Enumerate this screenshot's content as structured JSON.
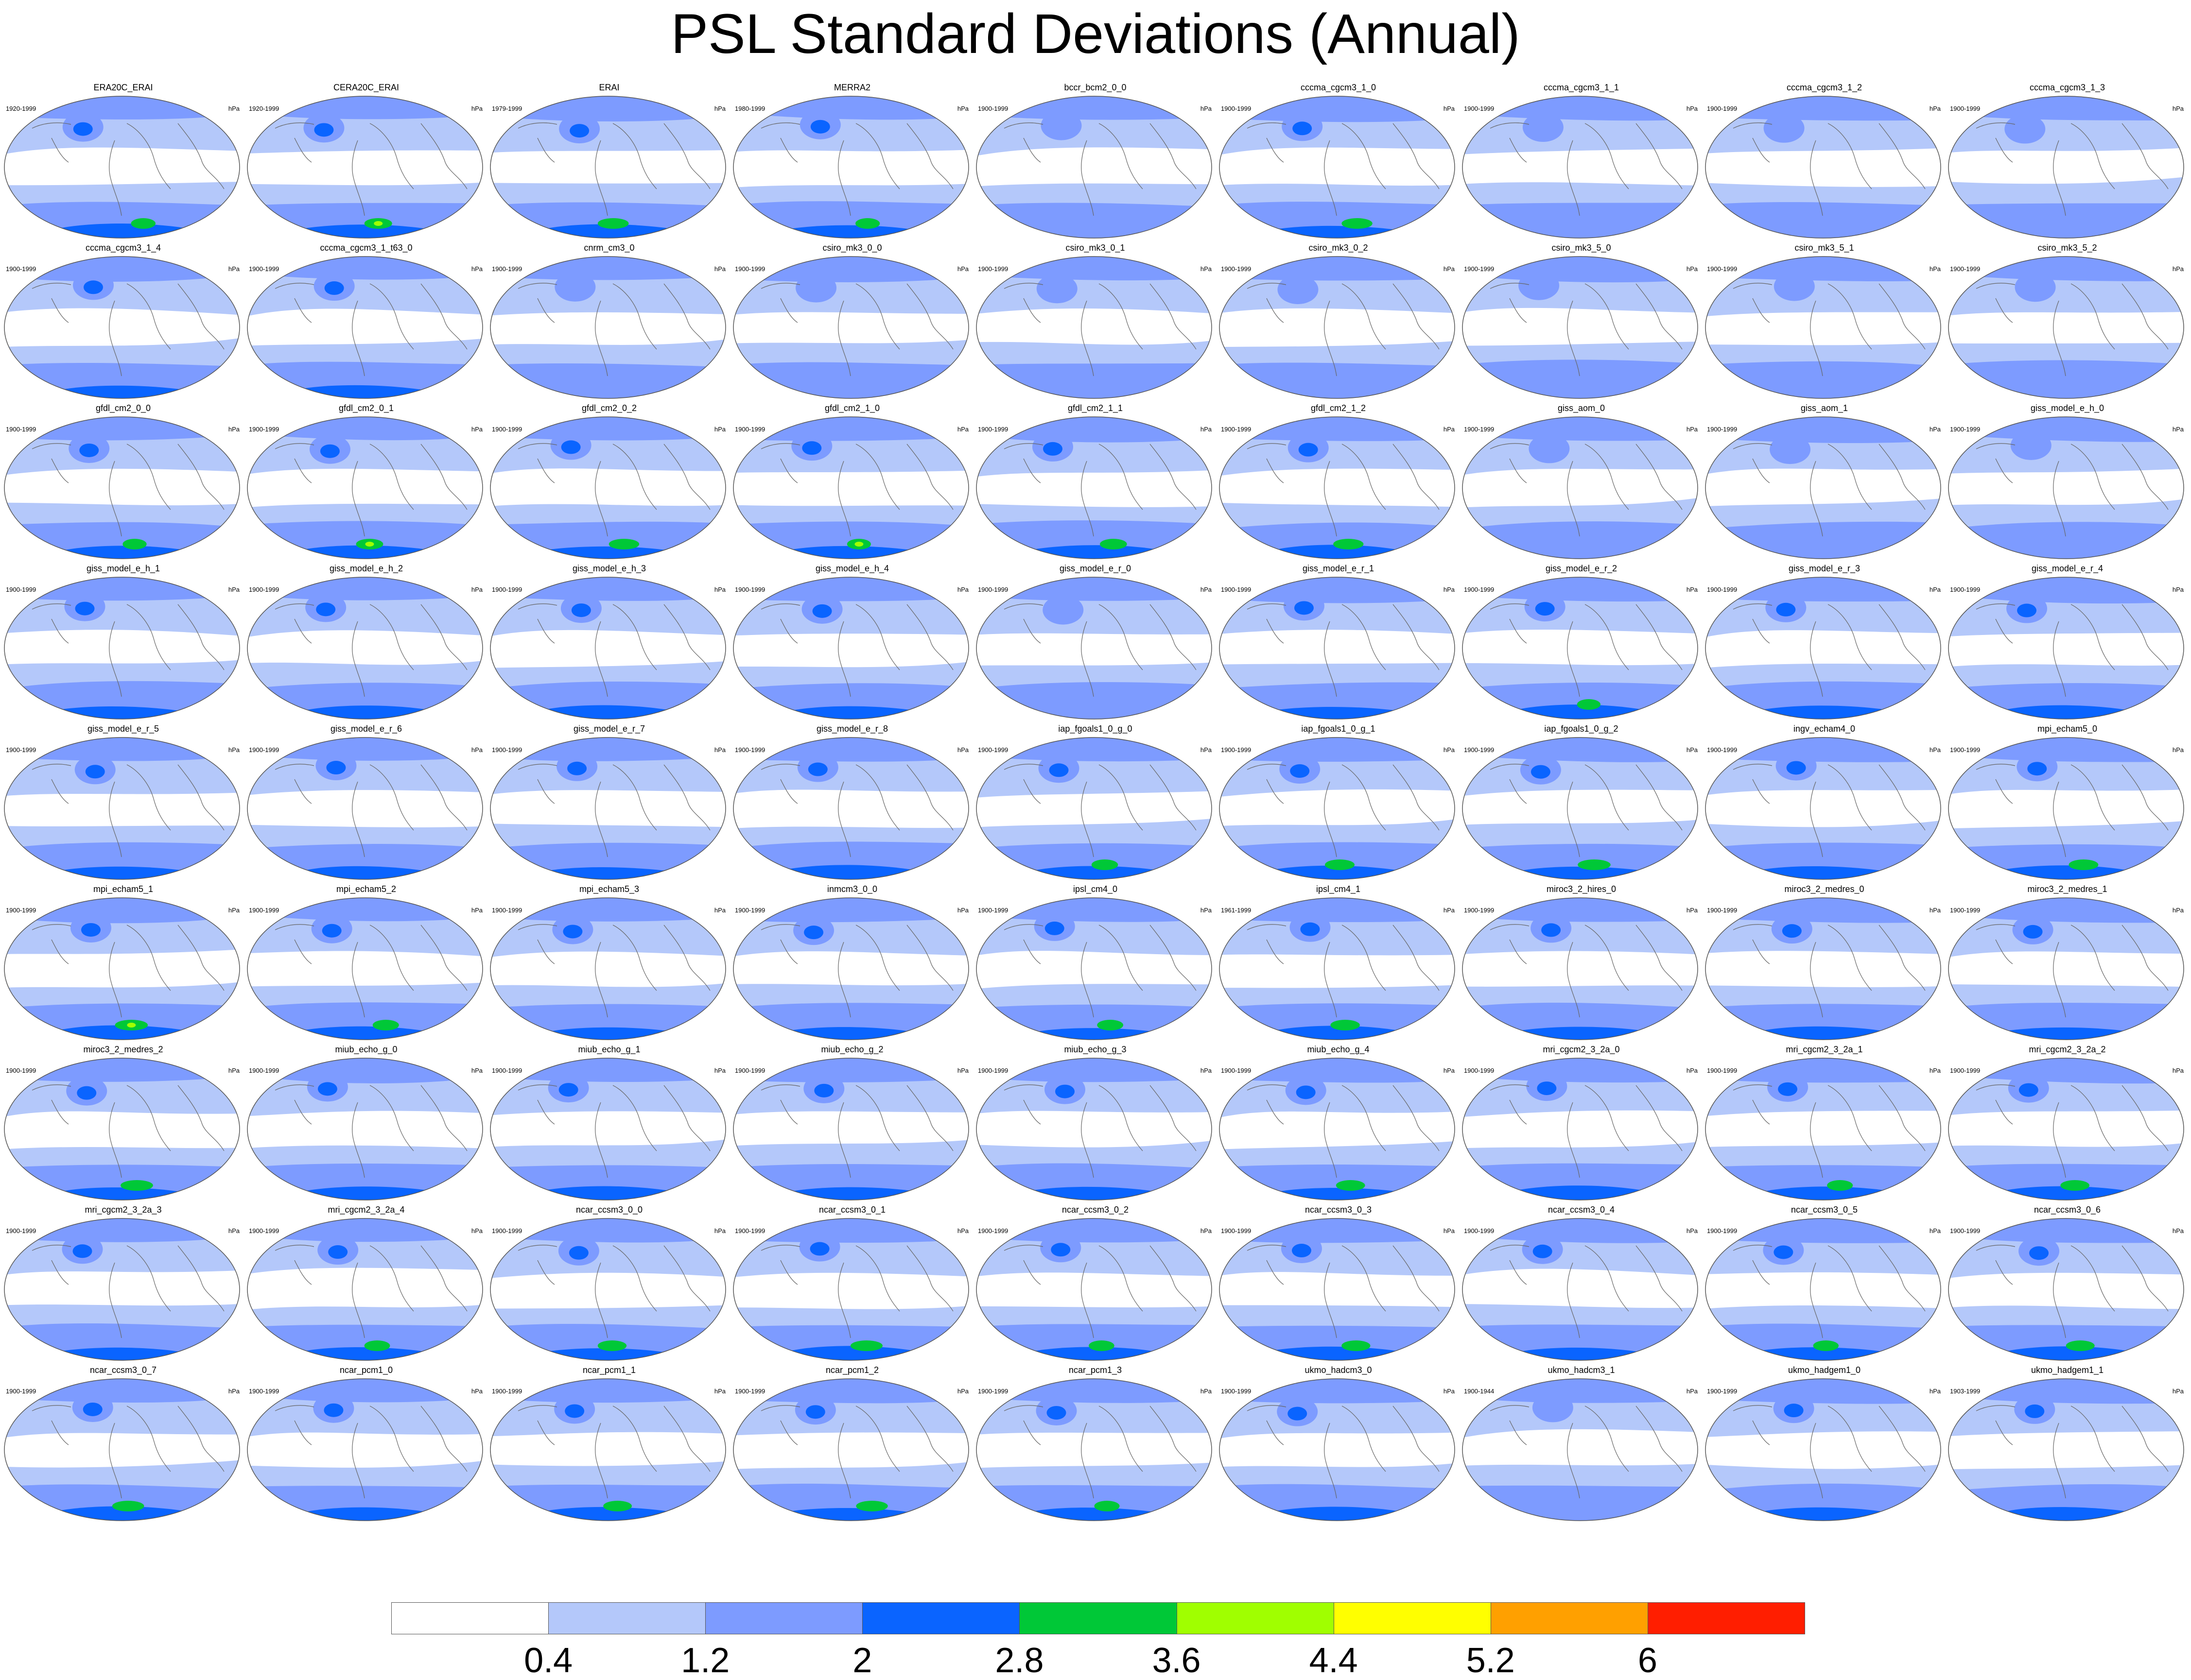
{
  "title": "PSL Standard Deviations (Annual)",
  "unit": "hPa",
  "chart_data": {
    "type": "contour-map-grid",
    "title": "PSL Standard Deviations (Annual)",
    "unit": "hPa",
    "colorbar": {
      "levels": [
        "0.4",
        "1.2",
        "2",
        "2.8",
        "3.6",
        "4.4",
        "5.2",
        "6"
      ],
      "colors": [
        "#ffffff",
        "#b4c8fa",
        "#7d9bff",
        "#0a64ff",
        "#00c837",
        "#a0ff00",
        "#ffff00",
        "#ffa000",
        "#ff1e00"
      ]
    },
    "panels": [
      {
        "name": "ERA20C_ERAI",
        "period": "1920-1999",
        "max_level": 4
      },
      {
        "name": "CERA20C_ERAI",
        "period": "1920-1999",
        "max_level": 5
      },
      {
        "name": "ERAI",
        "period": "1979-1999",
        "max_level": 4
      },
      {
        "name": "MERRA2",
        "period": "1980-1999",
        "max_level": 4
      },
      {
        "name": "bccr_bcm2_0_0",
        "period": "1900-1999",
        "max_level": 2
      },
      {
        "name": "cccma_cgcm3_1_0",
        "period": "1900-1999",
        "max_level": 4
      },
      {
        "name": "cccma_cgcm3_1_1",
        "period": "1900-1999",
        "max_level": 2
      },
      {
        "name": "cccma_cgcm3_1_2",
        "period": "1900-1999",
        "max_level": 2
      },
      {
        "name": "cccma_cgcm3_1_3",
        "period": "1900-1999",
        "max_level": 2
      },
      {
        "name": "cccma_cgcm3_1_4",
        "period": "1900-1999",
        "max_level": 3
      },
      {
        "name": "cccma_cgcm3_1_t63_0",
        "period": "1900-1999",
        "max_level": 3
      },
      {
        "name": "cnrm_cm3_0",
        "period": "1900-1999",
        "max_level": 2
      },
      {
        "name": "csiro_mk3_0_0",
        "period": "1900-1999",
        "max_level": 2
      },
      {
        "name": "csiro_mk3_0_1",
        "period": "1900-1999",
        "max_level": 2
      },
      {
        "name": "csiro_mk3_0_2",
        "period": "1900-1999",
        "max_level": 2
      },
      {
        "name": "csiro_mk3_5_0",
        "period": "1900-1999",
        "max_level": 2
      },
      {
        "name": "csiro_mk3_5_1",
        "period": "1900-1999",
        "max_level": 2
      },
      {
        "name": "csiro_mk3_5_2",
        "period": "1900-1999",
        "max_level": 2
      },
      {
        "name": "gfdl_cm2_0_0",
        "period": "1900-1999",
        "max_level": 4
      },
      {
        "name": "gfdl_cm2_0_1",
        "period": "1900-1999",
        "max_level": 5
      },
      {
        "name": "gfdl_cm2_0_2",
        "period": "1900-1999",
        "max_level": 4
      },
      {
        "name": "gfdl_cm2_1_0",
        "period": "1900-1999",
        "max_level": 5
      },
      {
        "name": "gfdl_cm2_1_1",
        "period": "1900-1999",
        "max_level": 4
      },
      {
        "name": "gfdl_cm2_1_2",
        "period": "1900-1999",
        "max_level": 4
      },
      {
        "name": "giss_aom_0",
        "period": "1900-1999",
        "max_level": 2
      },
      {
        "name": "giss_aom_1",
        "period": "1900-1999",
        "max_level": 2
      },
      {
        "name": "giss_model_e_h_0",
        "period": "1900-1999",
        "max_level": 2
      },
      {
        "name": "giss_model_e_h_1",
        "period": "1900-1999",
        "max_level": 3
      },
      {
        "name": "giss_model_e_h_2",
        "period": "1900-1999",
        "max_level": 3
      },
      {
        "name": "giss_model_e_h_3",
        "period": "1900-1999",
        "max_level": 3
      },
      {
        "name": "giss_model_e_h_4",
        "period": "1900-1999",
        "max_level": 3
      },
      {
        "name": "giss_model_e_r_0",
        "period": "1900-1999",
        "max_level": 2
      },
      {
        "name": "giss_model_e_r_1",
        "period": "1900-1999",
        "max_level": 3
      },
      {
        "name": "giss_model_e_r_2",
        "period": "1900-1999",
        "max_level": 4
      },
      {
        "name": "giss_model_e_r_3",
        "period": "1900-1999",
        "max_level": 3
      },
      {
        "name": "giss_model_e_r_4",
        "period": "1900-1999",
        "max_level": 3
      },
      {
        "name": "giss_model_e_r_5",
        "period": "1900-1999",
        "max_level": 3
      },
      {
        "name": "giss_model_e_r_6",
        "period": "1900-1999",
        "max_level": 3
      },
      {
        "name": "giss_model_e_r_7",
        "period": "1900-1999",
        "max_level": 3
      },
      {
        "name": "giss_model_e_r_8",
        "period": "1900-1999",
        "max_level": 3
      },
      {
        "name": "iap_fgoals1_0_g_0",
        "period": "1900-1999",
        "max_level": 4
      },
      {
        "name": "iap_fgoals1_0_g_1",
        "period": "1900-1999",
        "max_level": 4
      },
      {
        "name": "iap_fgoals1_0_g_2",
        "period": "1900-1999",
        "max_level": 4
      },
      {
        "name": "ingv_echam4_0",
        "period": "1900-1999",
        "max_level": 3
      },
      {
        "name": "mpi_echam5_0",
        "period": "1900-1999",
        "max_level": 4
      },
      {
        "name": "mpi_echam5_1",
        "period": "1900-1999",
        "max_level": 5
      },
      {
        "name": "mpi_echam5_2",
        "period": "1900-1999",
        "max_level": 4
      },
      {
        "name": "mpi_echam5_3",
        "period": "1900-1999",
        "max_level": 3
      },
      {
        "name": "inmcm3_0_0",
        "period": "1900-1999",
        "max_level": 3
      },
      {
        "name": "ipsl_cm4_0",
        "period": "1900-1999",
        "max_level": 4
      },
      {
        "name": "ipsl_cm4_1",
        "period": "1961-1999",
        "max_level": 4
      },
      {
        "name": "miroc3_2_hires_0",
        "period": "1900-1999",
        "max_level": 3
      },
      {
        "name": "miroc3_2_medres_0",
        "period": "1900-1999",
        "max_level": 3
      },
      {
        "name": "miroc3_2_medres_1",
        "period": "1900-1999",
        "max_level": 3
      },
      {
        "name": "miroc3_2_medres_2",
        "period": "1900-1999",
        "max_level": 4
      },
      {
        "name": "miub_echo_g_0",
        "period": "1900-1999",
        "max_level": 3
      },
      {
        "name": "miub_echo_g_1",
        "period": "1900-1999",
        "max_level": 3
      },
      {
        "name": "miub_echo_g_2",
        "period": "1900-1999",
        "max_level": 3
      },
      {
        "name": "miub_echo_g_3",
        "period": "1900-1999",
        "max_level": 3
      },
      {
        "name": "miub_echo_g_4",
        "period": "1900-1999",
        "max_level": 4
      },
      {
        "name": "mri_cgcm2_3_2a_0",
        "period": "1900-1999",
        "max_level": 3
      },
      {
        "name": "mri_cgcm2_3_2a_1",
        "period": "1900-1999",
        "max_level": 4
      },
      {
        "name": "mri_cgcm2_3_2a_2",
        "period": "1900-1999",
        "max_level": 4
      },
      {
        "name": "mri_cgcm2_3_2a_3",
        "period": "1900-1999",
        "max_level": 3
      },
      {
        "name": "mri_cgcm2_3_2a_4",
        "period": "1900-1999",
        "max_level": 4
      },
      {
        "name": "ncar_ccsm3_0_0",
        "period": "1900-1999",
        "max_level": 4
      },
      {
        "name": "ncar_ccsm3_0_1",
        "period": "1900-1999",
        "max_level": 4
      },
      {
        "name": "ncar_ccsm3_0_2",
        "period": "1900-1999",
        "max_level": 4
      },
      {
        "name": "ncar_ccsm3_0_3",
        "period": "1900-1999",
        "max_level": 4
      },
      {
        "name": "ncar_ccsm3_0_4",
        "period": "1900-1999",
        "max_level": 3
      },
      {
        "name": "ncar_ccsm3_0_5",
        "period": "1900-1999",
        "max_level": 4
      },
      {
        "name": "ncar_ccsm3_0_6",
        "period": "1900-1999",
        "max_level": 4
      },
      {
        "name": "ncar_ccsm3_0_7",
        "period": "1900-1999",
        "max_level": 4
      },
      {
        "name": "ncar_pcm1_0",
        "period": "1900-1999",
        "max_level": 3
      },
      {
        "name": "ncar_pcm1_1",
        "period": "1900-1999",
        "max_level": 4
      },
      {
        "name": "ncar_pcm1_2",
        "period": "1900-1999",
        "max_level": 4
      },
      {
        "name": "ncar_pcm1_3",
        "period": "1900-1999",
        "max_level": 4
      },
      {
        "name": "ukmo_hadcm3_0",
        "period": "1900-1999",
        "max_level": 3
      },
      {
        "name": "ukmo_hadcm3_1",
        "period": "1900-1944",
        "max_level": 2
      },
      {
        "name": "ukmo_hadgem1_0",
        "period": "1900-1999",
        "max_level": 3
      },
      {
        "name": "ukmo_hadgem1_1",
        "period": "1903-1999",
        "max_level": 3
      }
    ]
  }
}
